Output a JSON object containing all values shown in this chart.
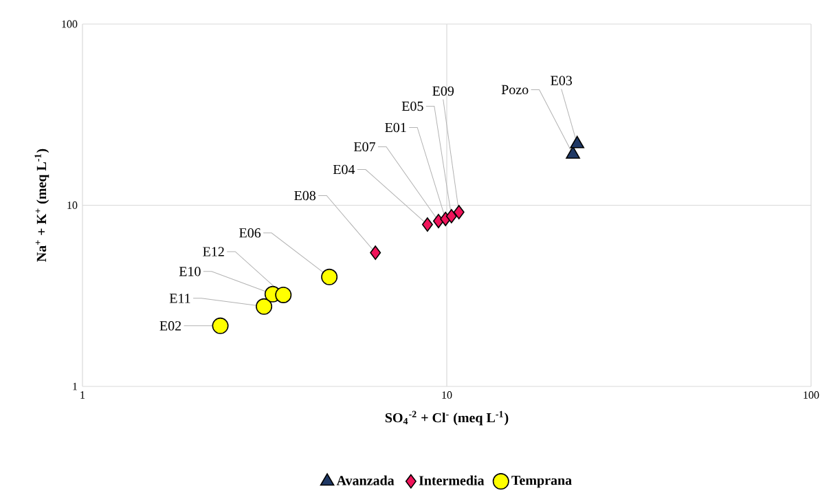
{
  "chart_data": {
    "type": "scatter",
    "xlabel": "SO$_{4}$$^{-2}$ + Cl$^{-}$ (meq L$^{-1}$)",
    "ylabel": "Na$^{+}$ + K$^{+}$ (meq L$^{-1}$)",
    "log": "xy",
    "xlim": [
      1,
      100
    ],
    "ylim": [
      1,
      100
    ],
    "xticks": [
      1,
      10,
      100
    ],
    "yticks": [
      1,
      10,
      100
    ],
    "grid": true,
    "legend": "bottom",
    "series": [
      {
        "name": "Avanzada",
        "color": "#1f3864",
        "marker": "triangle",
        "x": [
          22.2,
          22.8
        ],
        "values": [
          19.1,
          21.8
        ]
      },
      {
        "name": "Intermedia",
        "color": "#f0145a",
        "marker": "diamond",
        "x": [
          6.37,
          8.85,
          9.49,
          9.92,
          10.3,
          10.8
        ],
        "values": [
          5.47,
          7.83,
          8.18,
          8.4,
          8.7,
          9.16
        ]
      },
      {
        "name": "Temprana",
        "color": "#ffff00",
        "marker": "circle",
        "x": [
          2.39,
          3.15,
          3.33,
          3.56,
          4.76
        ],
        "values": [
          2.16,
          2.76,
          3.23,
          3.2,
          4.02
        ]
      }
    ],
    "annotations": [
      {
        "text": "E02",
        "x": 2.39,
        "y": 2.16
      },
      {
        "text": "E11",
        "x": 3.15,
        "y": 2.76
      },
      {
        "text": "E10",
        "x": 3.33,
        "y": 3.23
      },
      {
        "text": "E12",
        "x": 3.56,
        "y": 3.2
      },
      {
        "text": "E06",
        "x": 4.76,
        "y": 4.02
      },
      {
        "text": "E08",
        "x": 6.37,
        "y": 5.47
      },
      {
        "text": "E04",
        "x": 8.85,
        "y": 7.83
      },
      {
        "text": "E07",
        "x": 9.49,
        "y": 8.18
      },
      {
        "text": "E01",
        "x": 9.92,
        "y": 8.4
      },
      {
        "text": "E05",
        "x": 10.3,
        "y": 8.7
      },
      {
        "text": "E09",
        "x": 10.8,
        "y": 9.16
      },
      {
        "text": "Pozo",
        "x": 22.2,
        "y": 19.1
      },
      {
        "text": "E03",
        "x": 22.8,
        "y": 21.8
      }
    ]
  }
}
